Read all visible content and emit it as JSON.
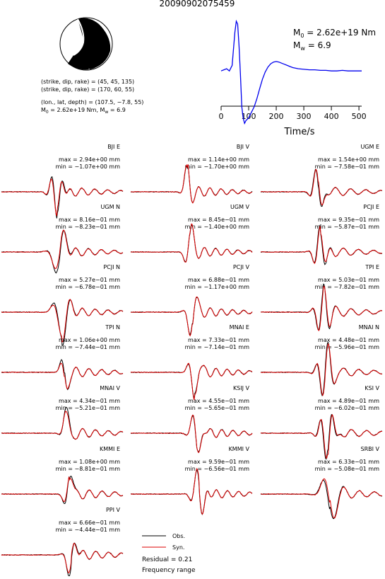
{
  "title": "20090902075459",
  "mechanism": {
    "np1": "(strike, dip, rake) = (45, 45, 135)",
    "np2": "(strike, dip, rake) = (170, 60, 55)",
    "loc": "(lon., lat, depth) = (107.5, −7.8, 55)",
    "m0_text": "M",
    "m0_sub": "0",
    "m0_val": " = 2.62e+19 Nm, M",
    "mw_sub": "w",
    "mw_val": " = 6.9"
  },
  "stf": {
    "m0_main": "M",
    "m0_sub": "0",
    "m0_val": " = 2.62e+19 Nm",
    "mw_main": "M",
    "mw_sub": "w",
    "mw_val": " = 6.9",
    "xlabel": "Time/s",
    "xticks": [
      "0",
      "100",
      "200",
      "300",
      "400",
      "500"
    ],
    "line_color": "#0000ee"
  },
  "chart_data": {
    "type": "line",
    "source_time_function": {
      "x": [
        0,
        10,
        20,
        30,
        40,
        50,
        55,
        60,
        65,
        70,
        75,
        80,
        85,
        90,
        100,
        110,
        120,
        130,
        140,
        150,
        160,
        170,
        180,
        190,
        200,
        210,
        220,
        230,
        240,
        250,
        260,
        280,
        300,
        320,
        340,
        360,
        380,
        400,
        420,
        440,
        460,
        480,
        500,
        510
      ],
      "y": [
        0.1,
        0.12,
        0.14,
        0.1,
        0.2,
        0.8,
        1.0,
        0.95,
        0.55,
        0.05,
        -0.55,
        -0.75,
        -0.85,
        -0.8,
        -0.75,
        -0.65,
        -0.55,
        -0.4,
        -0.22,
        -0.05,
        0.08,
        0.17,
        0.23,
        0.26,
        0.27,
        0.26,
        0.24,
        0.22,
        0.2,
        0.18,
        0.16,
        0.14,
        0.13,
        0.12,
        0.12,
        0.11,
        0.11,
        0.1,
        0.1,
        0.11,
        0.1,
        0.1,
        0.1,
        0.1
      ],
      "xlim": [
        0,
        510
      ]
    },
    "legend": {
      "obs": "Obs.",
      "syn": "Syn.",
      "obs_color": "#000000",
      "syn_color": "#dd0000"
    },
    "residual": "Residual = 0.21",
    "freq_label": "Frequency range",
    "panels": [
      {
        "name": "BJI E",
        "max": "max = 2.94e+00 mm",
        "min": "min = −1.07e+00 mm"
      },
      {
        "name": "BJI V",
        "max": "max = 1.14e+00 mm",
        "min": "min = −1.70e+00 mm"
      },
      {
        "name": "UGM E",
        "max": "max = 1.54e+00 mm",
        "min": "min = −7.58e−01 mm"
      },
      {
        "name": "UGM N",
        "max": "max = 8.16e−01 mm",
        "min": "min = −8.23e−01 mm"
      },
      {
        "name": "UGM V",
        "max": "max = 8.45e−01 mm",
        "min": "min = −1.40e+00 mm"
      },
      {
        "name": "PCJI E",
        "max": "max = 9.35e−01 mm",
        "min": "min = −5.87e−01 mm"
      },
      {
        "name": "PCJI N",
        "max": "max = 5.27e−01 mm",
        "min": "min = −6.78e−01 mm"
      },
      {
        "name": "PCJI V",
        "max": "max = 6.88e−01 mm",
        "min": "min = −1.17e+00 mm"
      },
      {
        "name": "TPI E",
        "max": "max = 5.03e−01 mm",
        "min": "min = −7.82e−01 mm"
      },
      {
        "name": "TPI N",
        "max": "max = 1.06e+00 mm",
        "min": "min = −7.44e−01 mm"
      },
      {
        "name": "MNAI E",
        "max": "max = 7.33e−01 mm",
        "min": "min = −7.14e−01 mm"
      },
      {
        "name": "MNAI N",
        "max": "max = 4.48e−01 mm",
        "min": "min = −5.96e−01 mm"
      },
      {
        "name": "MNAI V",
        "max": "max = 4.34e−01 mm",
        "min": "min = −5.21e−01 mm"
      },
      {
        "name": "KSIJ V",
        "max": "max = 4.55e−01 mm",
        "min": "min = −5.65e−01 mm"
      },
      {
        "name": "KSI V",
        "max": "max = 4.89e−01 mm",
        "min": "min = −6.02e−01 mm"
      },
      {
        "name": "KMMI E",
        "max": "max = 1.08e+00 mm",
        "min": "min = −8.81e−01 mm"
      },
      {
        "name": "KMMI V",
        "max": "max = 9.59e−01 mm",
        "min": "min = −6.56e−01 mm"
      },
      {
        "name": "SRBI V",
        "max": "max = 6.33e−01 mm",
        "min": "min = −5.08e−01 mm"
      },
      {
        "name": "PPI V",
        "max": "max = 6.66e−01 mm",
        "min": "min = −4.44e−01 mm"
      }
    ]
  }
}
